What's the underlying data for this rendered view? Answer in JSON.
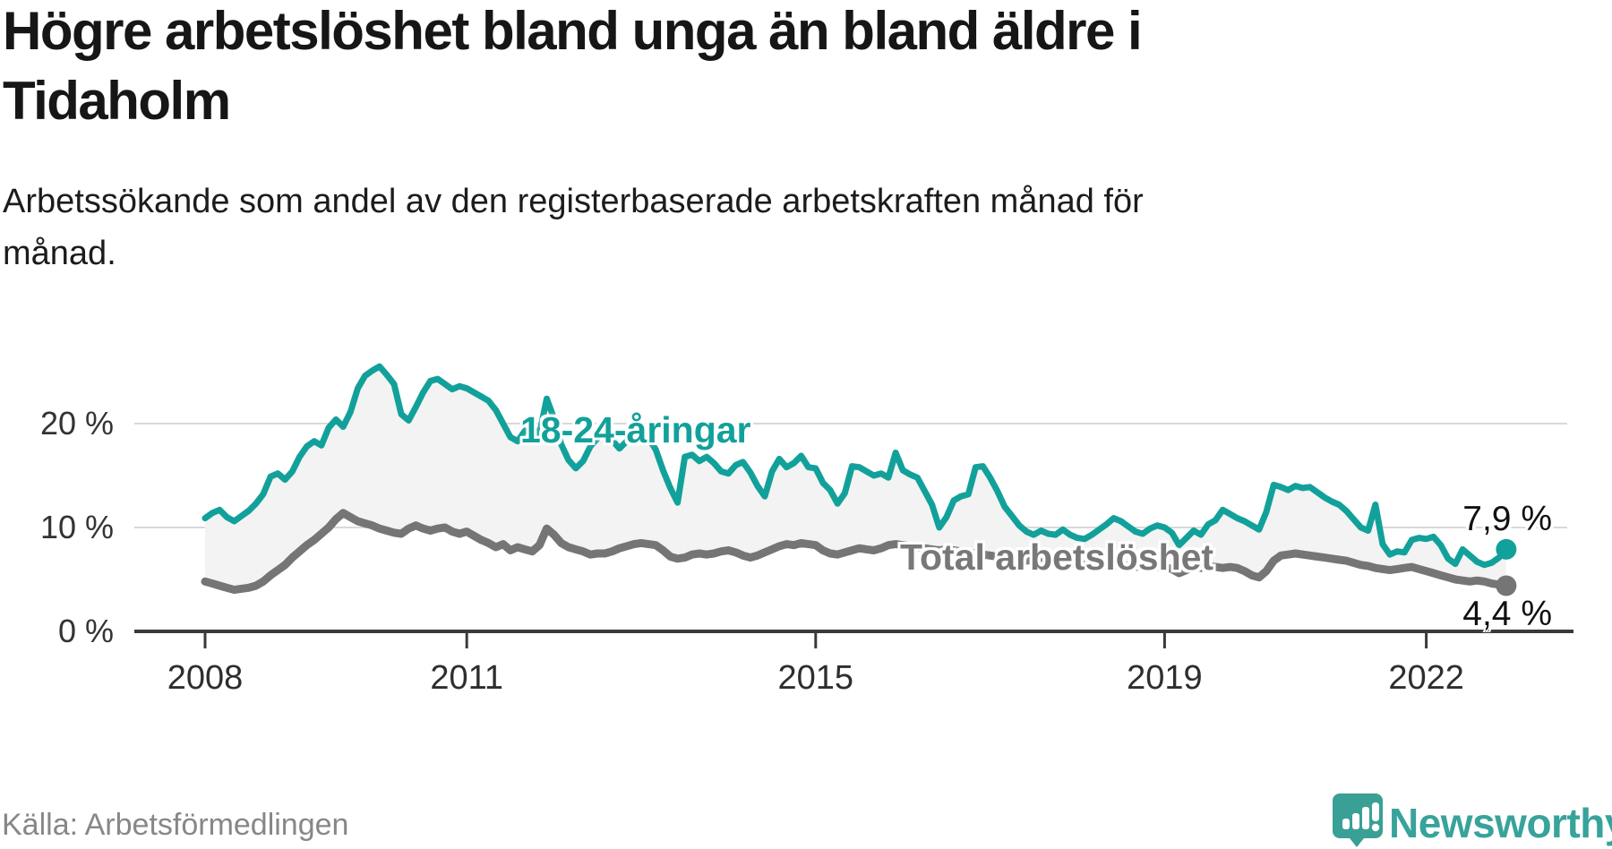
{
  "header": {
    "title_lines": [
      "Högre arbetslöshet bland unga än bland äldre i",
      "Tidaholm"
    ],
    "subtitle_lines": [
      "Arbetssökande som andel av den registerbaserade arbetskraften månad för",
      "månad."
    ]
  },
  "chart_data": {
    "type": "line",
    "title": "Högre arbetslöshet bland unga än bland äldre i Tidaholm",
    "subtitle": "Arbetssökande som andel av den registerbaserade arbetskraften månad för månad.",
    "frequency": "monthly",
    "x_start_year": 2008,
    "x_end_year": 2023,
    "ylim": [
      0,
      27
    ],
    "grid": "horizontal",
    "band_fill": "#f3f3f3",
    "axis_color": "#3a3a3a",
    "grid_color": "#d9d9d9",
    "x_ticks": [
      {
        "label": "2008",
        "year": 2008
      },
      {
        "label": "2011",
        "year": 2011
      },
      {
        "label": "2015",
        "year": 2015
      },
      {
        "label": "2019",
        "year": 2019
      },
      {
        "label": "2022",
        "year": 2022
      }
    ],
    "y_ticks": [
      {
        "label": "0 %",
        "value": 0
      },
      {
        "label": "10 %",
        "value": 10
      },
      {
        "label": "20 %",
        "value": 20
      }
    ],
    "series": [
      {
        "name": "18-24-åringar",
        "color": "#12a19a",
        "end_label": "7,9 %",
        "end_value": 7.9,
        "values": [
          10.9,
          11.4,
          11.7,
          11.0,
          10.6,
          11.1,
          11.6,
          12.3,
          13.2,
          14.9,
          15.2,
          14.6,
          15.4,
          16.8,
          17.8,
          18.3,
          17.9,
          19.6,
          20.4,
          19.7,
          21.1,
          23.4,
          24.6,
          25.1,
          25.5,
          24.7,
          23.8,
          20.9,
          20.3,
          21.6,
          23.0,
          24.1,
          24.3,
          23.8,
          23.3,
          23.6,
          23.4,
          23.0,
          22.6,
          22.2,
          21.3,
          20.0,
          18.7,
          18.3,
          19.3,
          19.6,
          19.0,
          22.4,
          20.5,
          18.0,
          16.5,
          15.7,
          16.4,
          17.8,
          18.6,
          19.2,
          18.4,
          17.6,
          18.3,
          19.2,
          19.6,
          18.6,
          17.5,
          15.5,
          13.8,
          12.4,
          16.8,
          17.0,
          16.4,
          16.8,
          16.2,
          15.4,
          15.2,
          16.0,
          16.3,
          15.3,
          14.0,
          13.0,
          15.4,
          16.6,
          15.8,
          16.2,
          16.9,
          15.8,
          15.7,
          14.3,
          13.6,
          12.3,
          13.3,
          15.9,
          15.8,
          15.4,
          15.0,
          15.2,
          14.8,
          17.2,
          15.5,
          15.1,
          14.8,
          13.5,
          12.2,
          10.0,
          11.0,
          12.6,
          13.0,
          13.2,
          15.8,
          15.9,
          14.8,
          13.5,
          12.0,
          11.1,
          10.2,
          9.6,
          9.3,
          9.7,
          9.4,
          9.3,
          9.8,
          9.3,
          9.0,
          8.9,
          9.3,
          9.8,
          10.3,
          10.9,
          10.6,
          10.1,
          9.6,
          9.4,
          9.9,
          10.2,
          10.0,
          9.5,
          8.3,
          9.0,
          9.7,
          9.3,
          10.3,
          10.7,
          11.7,
          11.3,
          10.9,
          10.6,
          10.2,
          9.8,
          11.5,
          14.1,
          13.9,
          13.6,
          14.0,
          13.8,
          13.9,
          13.4,
          12.9,
          12.5,
          12.2,
          11.6,
          10.8,
          10.0,
          9.7,
          12.2,
          8.4,
          7.4,
          7.7,
          7.6,
          8.8,
          9.0,
          8.9,
          9.1,
          8.3,
          7.0,
          6.5,
          7.9,
          7.3,
          6.7,
          6.4,
          6.6,
          7.1,
          7.9
        ]
      },
      {
        "name": "Total arbetslöshet",
        "color": "#757575",
        "end_label": "4,4 %",
        "end_value": 4.4,
        "values": [
          4.8,
          4.6,
          4.4,
          4.2,
          4.0,
          4.1,
          4.2,
          4.4,
          4.8,
          5.4,
          5.9,
          6.4,
          7.1,
          7.7,
          8.3,
          8.8,
          9.4,
          10.0,
          10.8,
          11.4,
          11.0,
          10.6,
          10.4,
          10.2,
          9.9,
          9.7,
          9.5,
          9.4,
          9.9,
          10.2,
          9.9,
          9.7,
          9.9,
          10.0,
          9.6,
          9.4,
          9.6,
          9.2,
          8.8,
          8.5,
          8.1,
          8.4,
          7.8,
          8.1,
          7.9,
          7.7,
          8.3,
          9.9,
          9.3,
          8.5,
          8.1,
          7.9,
          7.7,
          7.4,
          7.5,
          7.5,
          7.7,
          8.0,
          8.2,
          8.4,
          8.5,
          8.4,
          8.3,
          7.8,
          7.2,
          7.0,
          7.1,
          7.4,
          7.5,
          7.4,
          7.5,
          7.7,
          7.8,
          7.6,
          7.3,
          7.1,
          7.3,
          7.6,
          7.9,
          8.2,
          8.4,
          8.3,
          8.5,
          8.4,
          8.3,
          7.8,
          7.5,
          7.4,
          7.6,
          7.8,
          8.0,
          7.9,
          7.8,
          8.0,
          8.3,
          8.4,
          8.3,
          8.2,
          8.1,
          8.0,
          7.9,
          7.8,
          7.9,
          7.8,
          7.7,
          7.6,
          7.5,
          7.4,
          7.3,
          7.2,
          7.1,
          7.0,
          6.9,
          6.8,
          6.9,
          6.8,
          6.7,
          6.6,
          6.6,
          6.5,
          6.5,
          6.4,
          6.4,
          6.3,
          6.4,
          6.4,
          6.3,
          6.3,
          6.2,
          6.3,
          6.3,
          6.2,
          6.2,
          6.0,
          5.6,
          5.9,
          6.2,
          6.1,
          6.3,
          6.2,
          6.1,
          6.2,
          6.1,
          5.8,
          5.4,
          5.2,
          5.8,
          6.8,
          7.3,
          7.4,
          7.5,
          7.4,
          7.3,
          7.2,
          7.1,
          7.0,
          6.9,
          6.8,
          6.6,
          6.4,
          6.3,
          6.1,
          6.0,
          5.9,
          6.0,
          6.1,
          6.2,
          6.0,
          5.8,
          5.6,
          5.4,
          5.2,
          5.0,
          4.9,
          4.8,
          4.9,
          4.8,
          4.6,
          4.5,
          4.4
        ]
      }
    ]
  },
  "footer": {
    "source": "Källa: Arbetsförmedlingen",
    "logo_text": "Newsworthy"
  }
}
